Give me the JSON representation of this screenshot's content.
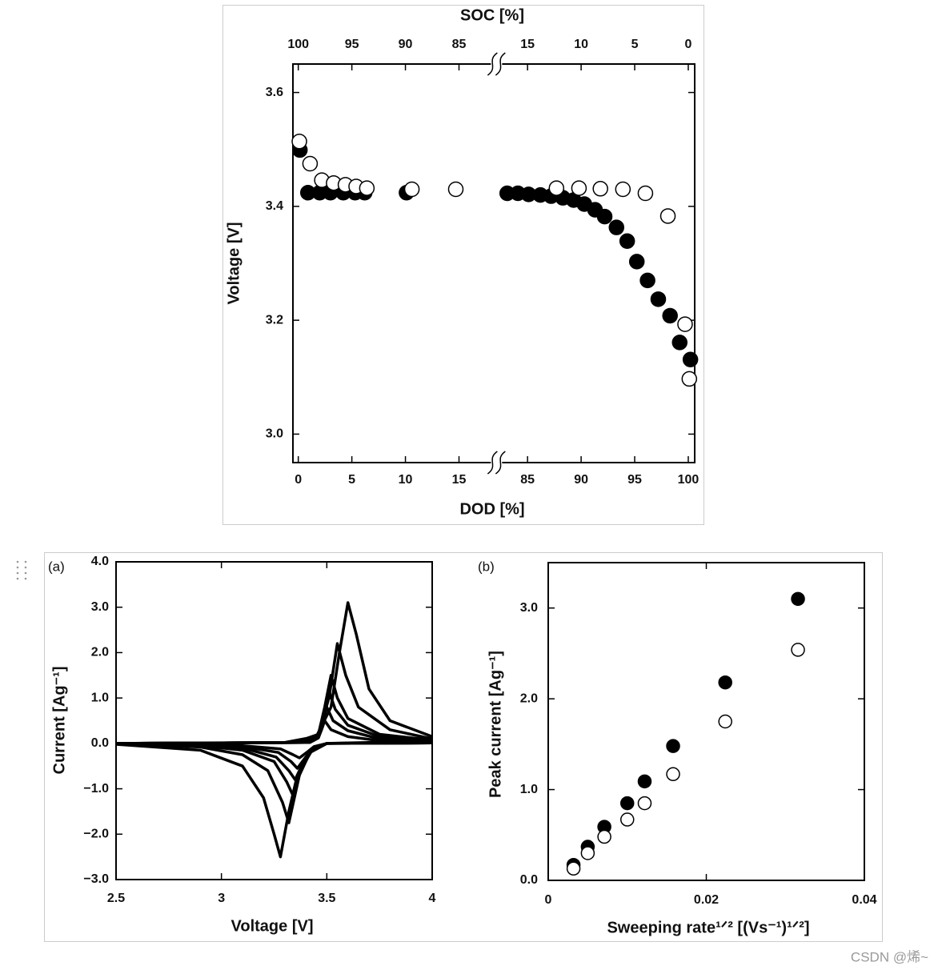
{
  "chart_data": [
    {
      "type": "scatter",
      "x2label": "SOC [%]",
      "xlabel": "DOD [%]",
      "ylabel": "Voltage [V]",
      "xlim": [
        -0.5,
        100.6
      ],
      "xbreak": [
        18.2,
        82.4
      ],
      "xticks": [
        0,
        5,
        10,
        15,
        85,
        90,
        95,
        100
      ],
      "x2lim": [
        100.5,
        -0.6
      ],
      "x2break": [
        81.8,
        17.6
      ],
      "x2ticks": [
        100,
        95,
        90,
        85,
        15,
        10,
        5,
        0
      ],
      "ylim": [
        2.95,
        3.65
      ],
      "yticks": [
        {
          "value": 3,
          "label": "3.0"
        },
        3.2,
        3.4,
        3.6
      ],
      "edgecolor": "#000000",
      "series": [
        {
          "color": "#000000",
          "x": [
            0.15,
            0.9,
            2.0,
            3.0,
            4.2,
            5.3,
            6.2,
            10.1,
            83.1,
            84.1,
            85.1,
            86.2,
            87.2,
            88.3,
            89.3,
            90.3,
            91.3,
            92.2,
            93.3,
            94.3,
            95.2,
            96.2,
            97.2,
            98.3,
            99.2,
            100.2
          ],
          "values": [
            3.499,
            3.424,
            3.424,
            3.424,
            3.424,
            3.424,
            3.424,
            3.424,
            3.423,
            3.423,
            3.421,
            3.42,
            3.418,
            3.415,
            3.411,
            3.404,
            3.394,
            3.382,
            3.363,
            3.339,
            3.303,
            3.27,
            3.237,
            3.208,
            3.161,
            3.131
          ]
        },
        {
          "color": "#ffffff",
          "x": [
            0.1,
            1.1,
            2.2,
            3.3,
            4.4,
            5.4,
            6.4,
            10.6,
            14.7,
            87.7,
            89.8,
            91.8,
            93.9,
            96.0,
            98.1,
            99.7,
            100.1
          ],
          "values": [
            3.514,
            3.475,
            3.446,
            3.441,
            3.438,
            3.435,
            3.432,
            3.43,
            3.43,
            3.432,
            3.432,
            3.431,
            3.43,
            3.423,
            3.383,
            3.193,
            3.097
          ]
        }
      ]
    },
    {
      "type": "line",
      "label": "(a)",
      "xlabel": "Voltage [V]",
      "ylabel": "Current [Ag⁻¹]",
      "xlim": [
        2.5,
        4
      ],
      "xticks": [
        2.5,
        3,
        3.5,
        4
      ],
      "ylim": [
        -3,
        4
      ],
      "yticks": [
        {
          "value": -3,
          "label": "−3.0"
        },
        {
          "value": -2,
          "label": "−2.0"
        },
        {
          "value": -1,
          "label": "−1.0"
        },
        {
          "value": 0,
          "label": "0.0"
        },
        {
          "value": 1,
          "label": "1.0"
        },
        {
          "value": 2,
          "label": "2.0"
        },
        {
          "value": 3,
          "label": "3.0"
        },
        {
          "value": 4,
          "label": "4.0"
        }
      ],
      "series": [
        {
          "color": "#000000",
          "x": [
            2.5,
            3.3,
            3.45,
            3.52,
            3.56,
            3.6,
            3.64,
            3.7,
            3.8,
            4.0,
            4.0,
            3.5,
            3.42,
            3.36,
            3.32,
            3.28,
            3.25,
            3.2,
            3.1,
            2.9,
            2.5
          ],
          "values": [
            0,
            0.02,
            0.15,
            0.8,
            2.0,
            3.1,
            2.4,
            1.2,
            0.5,
            0.15,
            0.05,
            0,
            -0.2,
            -0.7,
            -1.5,
            -2.5,
            -2.0,
            -1.2,
            -0.5,
            -0.15,
            -0.02
          ]
        },
        {
          "color": "#000000",
          "x": [
            2.5,
            3.35,
            3.46,
            3.51,
            3.55,
            3.59,
            3.65,
            3.8,
            4.0,
            4.0,
            3.5,
            3.42,
            3.37,
            3.32,
            3.29,
            3.22,
            3.1,
            2.9,
            2.5
          ],
          "values": [
            0,
            0.02,
            0.2,
            1.0,
            2.2,
            1.5,
            0.8,
            0.3,
            0.1,
            0.03,
            0,
            -0.2,
            -0.7,
            -1.75,
            -1.3,
            -0.6,
            -0.25,
            -0.08,
            -0.01
          ]
        },
        {
          "color": "#000000",
          "x": [
            2.5,
            3.38,
            3.46,
            3.49,
            3.52,
            3.55,
            3.6,
            3.75,
            4.0,
            4.0,
            3.5,
            3.43,
            3.38,
            3.34,
            3.31,
            3.25,
            3.1,
            2.9,
            2.5
          ],
          "values": [
            0,
            0.02,
            0.2,
            0.8,
            1.5,
            1.0,
            0.55,
            0.2,
            0.07,
            0.02,
            0,
            -0.15,
            -0.55,
            -1.15,
            -0.85,
            -0.4,
            -0.15,
            -0.05,
            -0.01
          ]
        },
        {
          "color": "#000000",
          "x": [
            2.5,
            3.4,
            3.46,
            3.485,
            3.51,
            3.54,
            3.6,
            3.75,
            4.0,
            4.0,
            3.5,
            3.43,
            3.39,
            3.35,
            3.32,
            3.26,
            3.1,
            2.9,
            2.5
          ],
          "values": [
            0,
            0.02,
            0.18,
            0.6,
            1.15,
            0.75,
            0.4,
            0.15,
            0.05,
            0.01,
            0,
            -0.12,
            -0.4,
            -0.8,
            -0.6,
            -0.3,
            -0.1,
            -0.04,
            -0.01
          ]
        },
        {
          "color": "#000000",
          "x": [
            2.5,
            3.4,
            3.46,
            3.48,
            3.5,
            3.53,
            3.6,
            3.75,
            4.0,
            4.0,
            3.5,
            3.44,
            3.4,
            3.36,
            3.33,
            3.27,
            3.1,
            2.9,
            2.5
          ],
          "values": [
            0,
            0.02,
            0.15,
            0.45,
            0.8,
            0.5,
            0.28,
            0.1,
            0.04,
            0.01,
            0,
            -0.1,
            -0.3,
            -0.55,
            -0.4,
            -0.2,
            -0.07,
            -0.03,
            -0.01
          ]
        },
        {
          "color": "#000000",
          "x": [
            2.5,
            3.42,
            3.46,
            3.475,
            3.49,
            3.52,
            3.6,
            3.75,
            4.0,
            4.0,
            3.5,
            3.44,
            3.41,
            3.37,
            3.34,
            3.28,
            3.1,
            2.9,
            2.5
          ],
          "values": [
            0,
            0.02,
            0.12,
            0.3,
            0.5,
            0.3,
            0.15,
            0.06,
            0.02,
            0.01,
            0,
            -0.07,
            -0.18,
            -0.32,
            -0.25,
            -0.12,
            -0.05,
            -0.02,
            -0.01
          ]
        }
      ]
    },
    {
      "type": "scatter",
      "label": "(b)",
      "xlabel": "Sweeping rate¹ᐟ² [(Vs⁻¹)¹ᐟ²]",
      "ylabel": "Peak current [Ag⁻¹]",
      "xlim": [
        0,
        0.04
      ],
      "xticks": [
        0,
        0.02,
        0.04
      ],
      "ylim": [
        0,
        3.5
      ],
      "yticks": [
        {
          "value": 0,
          "label": "0.0"
        },
        {
          "value": 1,
          "label": "1.0"
        },
        {
          "value": 2,
          "label": "2.0"
        },
        {
          "value": 3,
          "label": "3.0"
        }
      ],
      "edgecolor": "#000000",
      "series": [
        {
          "color": "#000000",
          "x": [
            0.0032,
            0.005,
            0.0071,
            0.01,
            0.0122,
            0.0158,
            0.0224,
            0.0316
          ],
          "values": [
            0.17,
            0.37,
            0.59,
            0.85,
            1.09,
            1.48,
            2.18,
            3.1
          ]
        },
        {
          "color": "#ffffff",
          "x": [
            0.0032,
            0.005,
            0.0071,
            0.01,
            0.0122,
            0.0158,
            0.0224,
            0.0316
          ],
          "values": [
            0.13,
            0.3,
            0.48,
            0.67,
            0.85,
            1.17,
            1.75,
            2.54
          ]
        }
      ]
    }
  ],
  "watermark": "CSDN @烯~"
}
